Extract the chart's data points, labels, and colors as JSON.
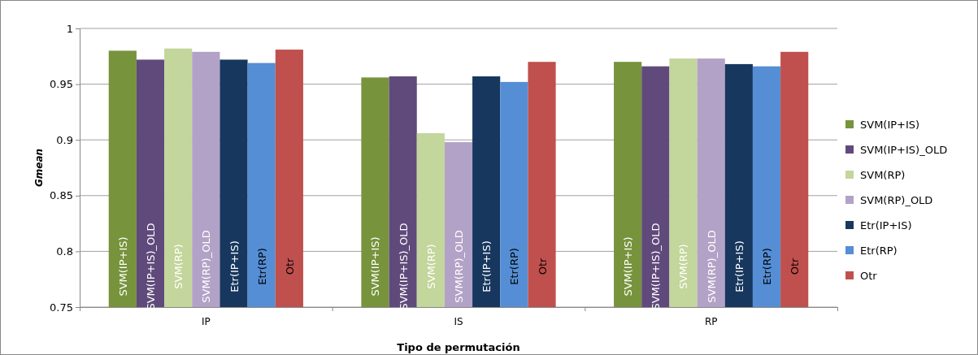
{
  "chart_data": {
    "type": "bar",
    "xlabel": "Tipo de permutación",
    "ylabel": "Gmean",
    "categories": [
      "IP",
      "IS",
      "RP"
    ],
    "series": [
      {
        "name": "SVM(IP+IS)",
        "color": "#77933c",
        "values": [
          0.98,
          0.956,
          0.97
        ]
      },
      {
        "name": "SVM(IP+IS)_OLD",
        "color": "#604a7b",
        "values": [
          0.972,
          0.957,
          0.966
        ]
      },
      {
        "name": "SVM(RP)",
        "color": "#c3d69b",
        "values": [
          0.982,
          0.906,
          0.973
        ]
      },
      {
        "name": "SVM(RP)_OLD",
        "color": "#b3a2c7",
        "values": [
          0.979,
          0.898,
          0.973
        ]
      },
      {
        "name": "Etr(IP+IS)",
        "color": "#17375e",
        "values": [
          0.972,
          0.957,
          0.968
        ]
      },
      {
        "name": "Etr(RP)",
        "color": "#558ed5",
        "values": [
          0.969,
          0.952,
          0.966
        ]
      },
      {
        "name": "Otr",
        "color": "#c0504d",
        "values": [
          0.981,
          0.97,
          0.979
        ]
      }
    ],
    "ylim": [
      0.75,
      1
    ],
    "yticks": [
      {
        "value": 0.75,
        "label": "0.75"
      },
      {
        "value": 0.8,
        "label": "0.8"
      },
      {
        "value": 0.85,
        "label": "0.85"
      },
      {
        "value": 0.9,
        "label": "0.9"
      },
      {
        "value": 0.95,
        "label": "0.95"
      },
      {
        "value": 1,
        "label": "1"
      }
    ],
    "grid": "y",
    "legend": "right"
  }
}
